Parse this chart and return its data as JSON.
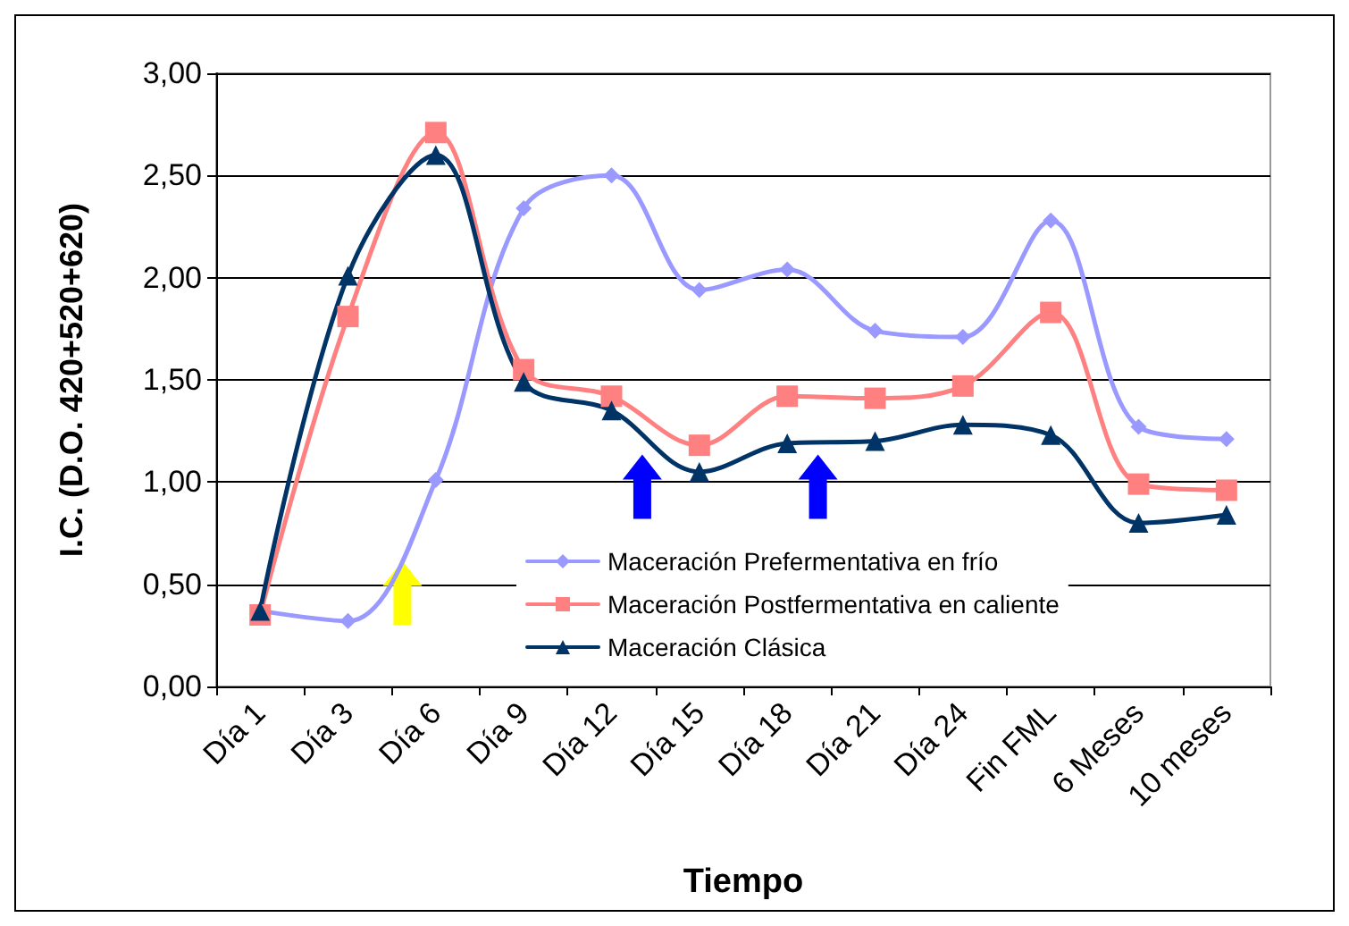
{
  "chart_data": {
    "type": "line",
    "xlabel": "Tiempo",
    "ylabel": "I.C. (D.O. 420+520+620)",
    "categories": [
      "Día 1",
      "Día 3",
      "Día 6",
      "Día 9",
      "Día 12",
      "Día 15",
      "Día 18",
      "Día 21",
      "Día 24",
      "Fin FML",
      "6 Meses",
      "10 meses"
    ],
    "series": [
      {
        "name": "Maceración Prefermentativa en frío",
        "color": "#9999ff",
        "marker": "diamond",
        "values": [
          0.37,
          0.32,
          1.01,
          2.34,
          2.5,
          1.94,
          2.04,
          1.74,
          1.71,
          2.28,
          1.27,
          1.21
        ]
      },
      {
        "name": "Maceración Postfermentativa en caliente",
        "color": "#ff8080",
        "marker": "square",
        "values": [
          0.35,
          1.81,
          2.71,
          1.55,
          1.42,
          1.18,
          1.42,
          1.41,
          1.47,
          1.83,
          0.99,
          0.96
        ]
      },
      {
        "name": "Maceración Clásica",
        "color": "#003366",
        "marker": "triangle",
        "values": [
          0.37,
          2.01,
          2.6,
          1.49,
          1.35,
          1.05,
          1.19,
          1.2,
          1.28,
          1.23,
          0.8,
          0.84
        ]
      }
    ],
    "ylim": [
      0,
      3
    ],
    "yticks": [
      {
        "value": 0,
        "label": "0,00"
      },
      {
        "value": 0.5,
        "label": "0,50"
      },
      {
        "value": 1,
        "label": "1,00"
      },
      {
        "value": 1.5,
        "label": "1,50"
      },
      {
        "value": 2,
        "label": "2,00"
      },
      {
        "value": 2.5,
        "label": "2,50"
      },
      {
        "value": 3,
        "label": "3,00"
      }
    ],
    "grid": "y",
    "legend": "bottom",
    "line_style": "solid"
  }
}
